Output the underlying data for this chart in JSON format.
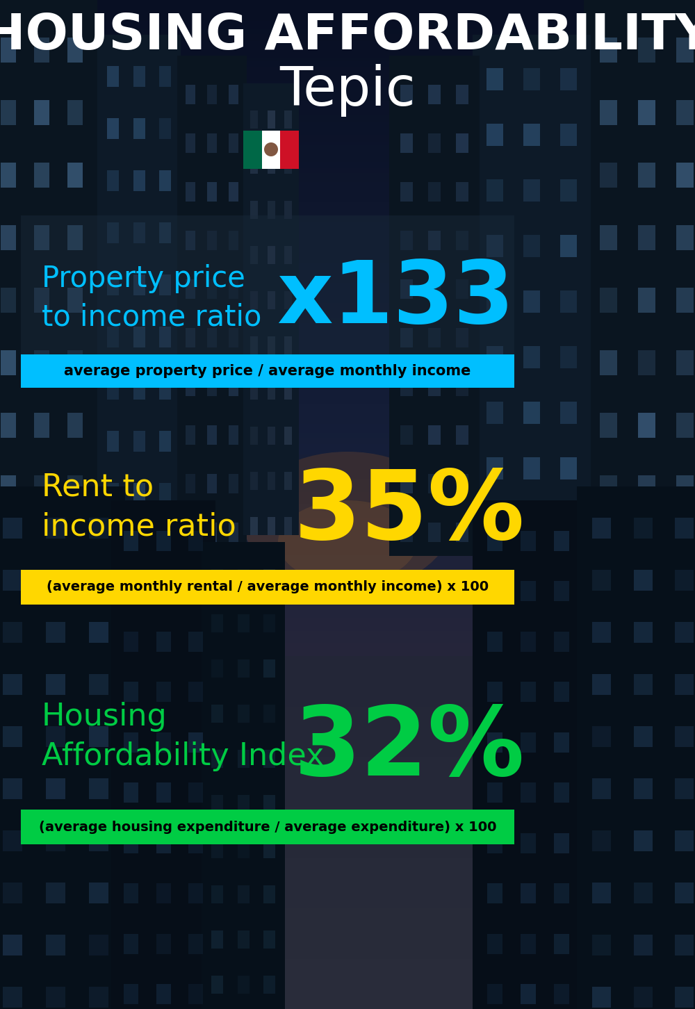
{
  "title_line1": "HOUSING AFFORDABILITY",
  "title_line2": "Tepic",
  "bg_color": "#050d18",
  "title1_color": "#ffffff",
  "title2_color": "#ffffff",
  "section1_label": "Property price\nto income ratio",
  "section1_value": "x133",
  "section1_label_color": "#00bfff",
  "section1_value_color": "#00bfff",
  "section1_banner": "average property price / average monthly income",
  "section1_banner_bg": "#00bfff",
  "section1_banner_color": "#000000",
  "section2_label": "Rent to\nincome ratio",
  "section2_value": "35%",
  "section2_label_color": "#ffd700",
  "section2_value_color": "#ffd700",
  "section2_banner": "(average monthly rental / average monthly income) x 100",
  "section2_banner_bg": "#ffd700",
  "section2_banner_color": "#000000",
  "section3_label": "Housing\nAffordability Index",
  "section3_value": "32%",
  "section3_label_color": "#00cc44",
  "section3_value_color": "#00cc44",
  "section3_banner": "(average housing expenditure / average expenditure) x 100",
  "section3_banner_bg": "#00cc44",
  "section3_banner_color": "#000000",
  "flag_green": "#006847",
  "flag_white": "#ffffff",
  "flag_red": "#ce1126"
}
